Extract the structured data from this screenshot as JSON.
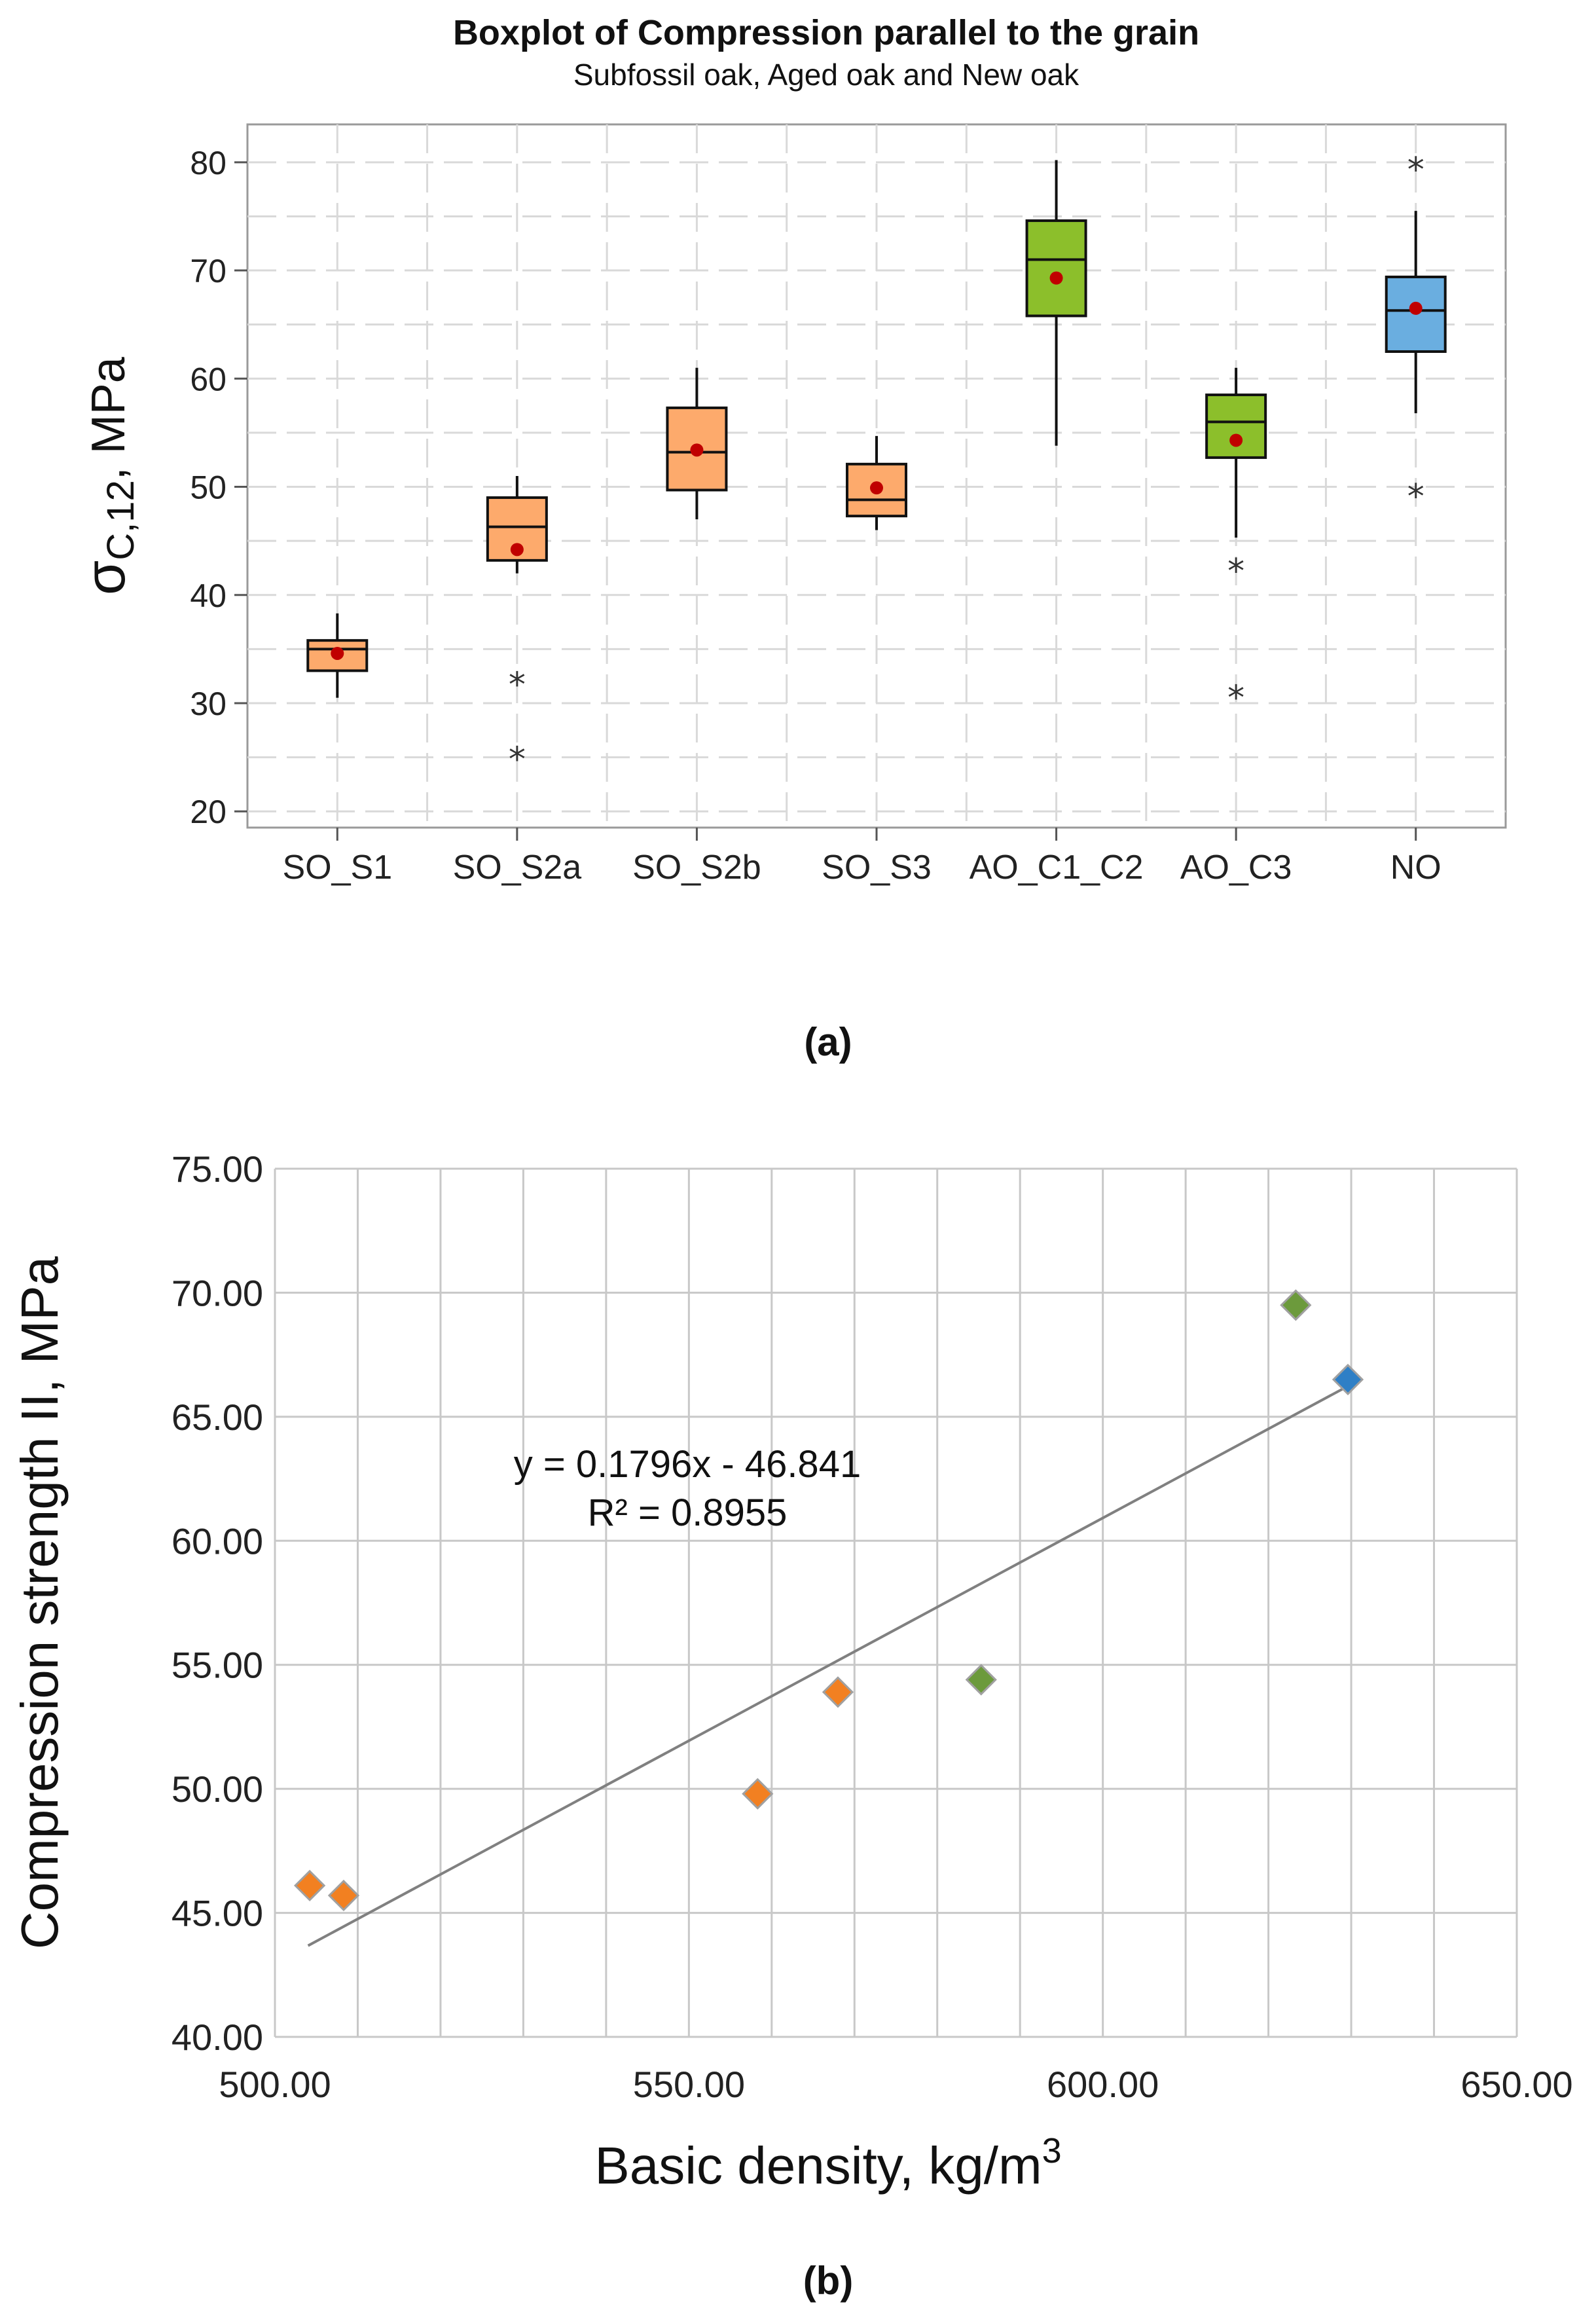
{
  "chart_data": [
    {
      "type": "boxplot",
      "title": "Boxplot of Compression parallel to the grain",
      "subtitle": "Subfossil oak, Aged oak and New oak",
      "ylabel_main": "σ",
      "ylabel_sub": "C,12",
      "ylabel_unit": ", MPa",
      "ylim": [
        18.5,
        83.5
      ],
      "yticks": [
        20,
        30,
        40,
        50,
        60,
        70,
        80
      ],
      "ytick_labels": [
        "20",
        "30",
        "40",
        "50",
        "60",
        "70",
        "80"
      ],
      "grid": true,
      "categories": [
        "SO_S1",
        "SO_S2a",
        "SO_S2b",
        "SO_S3",
        "AO_C1_C2",
        "AO_C3",
        "NO"
      ],
      "boxes": [
        {
          "category": "SO_S1",
          "whisker_low": 30.5,
          "q1": 33.0,
          "median": 35.0,
          "q3": 35.8,
          "whisker_high": 38.3,
          "mean": 34.6,
          "outliers": [],
          "color": "#fdaa6c"
        },
        {
          "category": "SO_S2a",
          "whisker_low": 42.0,
          "q1": 43.2,
          "median": 46.3,
          "q3": 49.0,
          "whisker_high": 51.0,
          "mean": 44.2,
          "outliers": [
            32.2,
            25.3
          ],
          "color": "#fdaa6c"
        },
        {
          "category": "SO_S2b",
          "whisker_low": 47.0,
          "q1": 49.7,
          "median": 53.2,
          "q3": 57.3,
          "whisker_high": 61.0,
          "mean": 53.4,
          "outliers": [],
          "color": "#fdaa6c"
        },
        {
          "category": "SO_S3",
          "whisker_low": 46.0,
          "q1": 47.3,
          "median": 48.8,
          "q3": 52.1,
          "whisker_high": 54.7,
          "mean": 49.9,
          "outliers": [],
          "color": "#fdaa6c"
        },
        {
          "category": "AO_C1_C2",
          "whisker_low": 53.8,
          "q1": 65.8,
          "median": 71.0,
          "q3": 74.6,
          "whisker_high": 80.2,
          "mean": 69.3,
          "outliers": [],
          "color": "#8cbf2b"
        },
        {
          "category": "AO_C3",
          "whisker_low": 45.3,
          "q1": 52.7,
          "median": 56.0,
          "q3": 58.5,
          "whisker_high": 61.0,
          "mean": 54.3,
          "outliers": [
            42.7,
            31.0
          ],
          "color": "#8cbf2b"
        },
        {
          "category": "NO",
          "whisker_low": 56.8,
          "q1": 62.5,
          "median": 66.3,
          "q3": 69.4,
          "whisker_high": 75.5,
          "mean": 66.5,
          "outliers": [
            79.8,
            49.6
          ],
          "color": "#6aaee0"
        }
      ],
      "outlier_marker": "*",
      "panel_label": "(a)"
    },
    {
      "type": "scatter",
      "xlabel": "Basic density, kg/m",
      "xlabel_sup": "3",
      "ylabel": "Compression strength II, MPa",
      "xlim": [
        500,
        650
      ],
      "ylim": [
        40,
        75
      ],
      "xticks": [
        500,
        550,
        600,
        650
      ],
      "xtick_labels": [
        "500.00",
        "550.00",
        "600.00",
        "650.00"
      ],
      "xgrid": [
        500,
        510,
        520,
        530,
        540,
        550,
        560,
        570,
        580,
        590,
        600,
        610,
        620,
        630,
        640,
        650
      ],
      "yticks": [
        40,
        45,
        50,
        55,
        60,
        65,
        70,
        75
      ],
      "ytick_labels": [
        "40.00",
        "45.00",
        "50.00",
        "55.00",
        "60.00",
        "65.00",
        "70.00",
        "75.00"
      ],
      "grid": true,
      "series": [
        {
          "name": "Subfossil oak",
          "color": "#f28021",
          "points": [
            [
              504.2,
              46.1
            ],
            [
              508.3,
              45.7
            ],
            [
              558.3,
              49.8
            ],
            [
              568.0,
              53.9
            ]
          ]
        },
        {
          "name": "Aged oak",
          "color": "#6c9a3c",
          "points": [
            [
              585.3,
              54.4
            ],
            [
              623.3,
              69.5
            ]
          ]
        },
        {
          "name": "New oak",
          "color": "#2e7fc6",
          "points": [
            [
              629.6,
              66.5
            ]
          ]
        }
      ],
      "trendline": {
        "slope": 0.1796,
        "intercept": -46.841,
        "x_start": 504,
        "x_end": 630
      },
      "equation_text": "y = 0.1796x - 46.841",
      "r2_text": "R² = 0.8955",
      "panel_label": "(b)"
    }
  ]
}
